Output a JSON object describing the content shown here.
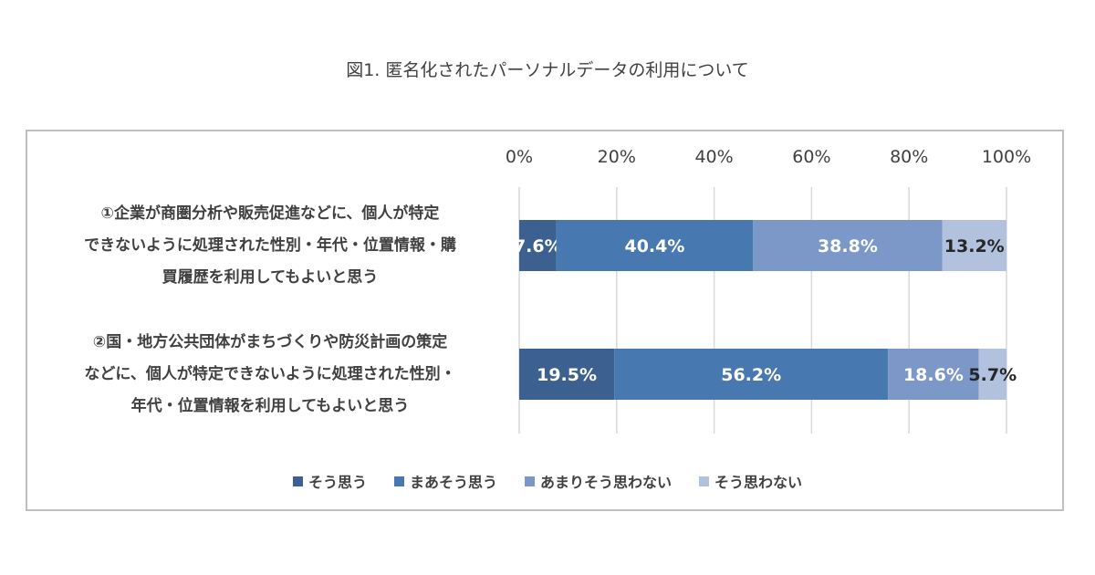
{
  "chart_data": {
    "type": "bar",
    "orientation": "horizontal",
    "stacked": "100%",
    "title": "図1. 匿名化されたパーソナルデータの利用について",
    "categories": [
      "①企業が商圏分析や販売促進などに、個人が特定できないように処理された性別・年代・位置情報・購買履歴を利用してもよいと思う",
      "②国・地方公共団体がまちづくりや防災計画の策定などに、個人が特定できないように処理された性別・年代・位置情報を利用してもよいと思う"
    ],
    "category_lines": [
      [
        "①企業が商圏分析や販売促進などに、個人が特定",
        "できないように処理された性別・年代・位置情報・購",
        "買履歴を利用してもよいと思う"
      ],
      [
        "②国・地方公共団体がまちづくりや防災計画の策定",
        "などに、個人が特定できないように処理された性別・",
        "年代・位置情報を利用してもよいと思う"
      ]
    ],
    "series": [
      {
        "name": "そう思う",
        "values": [
          7.6,
          19.5
        ],
        "labels": [
          "7.6%",
          "19.5%"
        ],
        "color": "#3c6190",
        "label_color": "#ffffff"
      },
      {
        "name": "まあそう思う",
        "values": [
          40.4,
          56.2
        ],
        "labels": [
          "40.4%",
          "56.2%"
        ],
        "color": "#4878b0",
        "label_color": "#ffffff"
      },
      {
        "name": "あまりそう思わない",
        "values": [
          38.8,
          18.6
        ],
        "labels": [
          "38.8%",
          "18.6%"
        ],
        "color": "#7b98c8",
        "label_color": "#ffffff"
      },
      {
        "name": "そう思わない",
        "values": [
          13.2,
          5.7
        ],
        "labels": [
          "13.2%",
          "5.7%"
        ],
        "color": "#b1c1de",
        "label_color": "#262626"
      }
    ],
    "xlim": [
      0,
      100
    ],
    "xticks": [
      "0%",
      "20%",
      "40%",
      "60%",
      "80%",
      "100%"
    ],
    "xaxis_position": "top",
    "grid": true,
    "legend_position": "bottom"
  }
}
